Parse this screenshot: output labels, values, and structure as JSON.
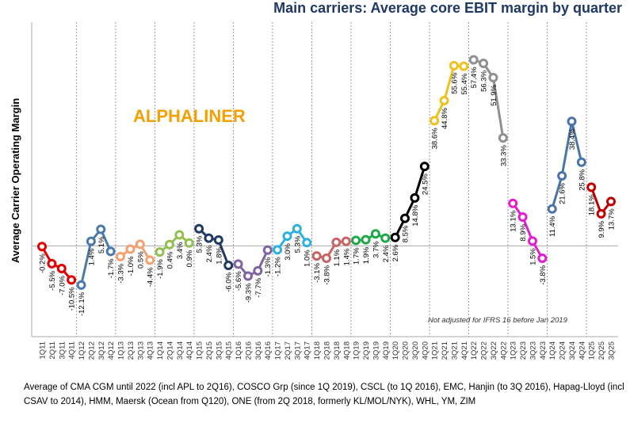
{
  "chart_data": {
    "type": "line",
    "title": "Main carriers: Average core EBIT margin by quarter",
    "y_label": "Average Carrier Operating Margin",
    "watermark": "ALPHALINER",
    "annotation": "Not adjusted for IFRS 16 before Jan 2019",
    "footnote": "Average of CMA CGM until 2022 (incl APL to 2Q16), COSCO Grp (since 1Q 2019), CSCL (to 1Q 2016), EMC, Hanjin (to 3Q 2016), Hapag-Lloyd (incl CSAV to 2014), HMM, Maersk (Ocean from Q120), ONE (from 2Q 2018, formerly KL/MOL/NYK), WHL, YM, ZIM",
    "categories": [
      "1Q11",
      "2Q11",
      "3Q11",
      "4Q11",
      "1Q12",
      "2Q12",
      "3Q12",
      "4Q12",
      "1Q13",
      "2Q13",
      "3Q13",
      "4Q13",
      "1Q14",
      "2Q14",
      "3Q14",
      "4Q14",
      "1Q15",
      "2Q15",
      "3Q15",
      "4Q15",
      "1Q16",
      "2Q16",
      "3Q16",
      "4Q16",
      "1Q17",
      "2Q17",
      "3Q17",
      "4Q17",
      "1Q18",
      "2Q18",
      "3Q18",
      "4Q18",
      "1Q19",
      "2Q19",
      "3Q19",
      "4Q19",
      "1Q20",
      "2Q20",
      "3Q20",
      "4Q20",
      "1Q21",
      "2Q21",
      "3Q21",
      "4Q21",
      "1Q22",
      "2Q22",
      "3Q22",
      "4Q22",
      "1Q23",
      "2Q23",
      "3Q23",
      "4Q23",
      "1Q24",
      "2Q24",
      "3Q24",
      "4Q24",
      "1Q25",
      "2Q25",
      "3Q25"
    ],
    "values": [
      -0.2,
      -5.5,
      -7.0,
      -10.5,
      -12.1,
      1.4,
      5.1,
      -1.7,
      -3.3,
      -1.0,
      0.5,
      -4.4,
      -1.9,
      0.4,
      3.4,
      0.9,
      5.3,
      2.4,
      1.8,
      -6.0,
      -5.6,
      -9.3,
      -7.7,
      -1.3,
      -1.2,
      3.0,
      5.3,
      1.0,
      -3.1,
      -3.8,
      1.1,
      1.4,
      1.7,
      1.9,
      3.7,
      2.4,
      2.6,
      8.5,
      14.8,
      24.5,
      38.6,
      44.8,
      55.6,
      55.4,
      57.4,
      56.3,
      51.9,
      33.3,
      13.1,
      8.9,
      1.5,
      -3.8,
      11.4,
      21.6,
      38.4,
      25.8,
      18.1,
      9.9,
      13.7
    ],
    "value_labels": [
      "-0.2%",
      "-5.5%",
      "-7.0%",
      "-10.5%",
      "-12.1%",
      "1.4%",
      "5.1%",
      "-1.7%",
      "-3.3%",
      "-1.0%",
      "0.5%",
      "-4.4%",
      "-1.9%",
      "0.4%",
      "3.4%",
      "0.9%",
      "5.3%",
      "2.4%",
      "1.8%",
      "-6.0%",
      "-5.6%",
      "-9.3%",
      "-7.7%",
      "-1.3%",
      "-1.2%",
      "3.0%",
      "5.3%",
      "1.0%",
      "-3.1%",
      "-3.8%",
      "1.1%",
      "1.4%",
      "1.7%",
      "1.9%",
      "3.7%",
      "2.4%",
      "2.6%",
      "8.5%",
      "14.8%",
      "24.5%",
      "38.6%",
      "44.8%",
      "55.6%",
      "55.4%",
      "57.4%",
      "56.3%",
      "51.9%",
      "33.3%",
      "13.1%",
      "8.9%",
      "1.5%",
      "-3.8%",
      "11.4%",
      "21.6%",
      "38.4%",
      "25.8%",
      "18.1%",
      "9.9%",
      "13.7%"
    ],
    "colors": [
      "#e00000",
      "#e00000",
      "#e00000",
      "#e00000",
      "#4a7aab",
      "#4a7aab",
      "#4a7aab",
      "#4a7aab",
      "#f4a070",
      "#f4a070",
      "#f4a070",
      "#f4a070",
      "#92c050",
      "#92c050",
      "#92c050",
      "#92c050",
      "#1f3b63",
      "#1f3b63",
      "#1f3b63",
      "#1f3b63",
      "#8064a2",
      "#8064a2",
      "#8064a2",
      "#8064a2",
      "#2eb0e0",
      "#2eb0e0",
      "#2eb0e0",
      "#2eb0e0",
      "#c86464",
      "#c86464",
      "#c86464",
      "#c86464",
      "#1ea84a",
      "#1ea84a",
      "#1ea84a",
      "#1ea84a",
      "#000000",
      "#000000",
      "#000000",
      "#000000",
      "#f0c020",
      "#f0c020",
      "#f0c020",
      "#f0c020",
      "#909090",
      "#909090",
      "#909090",
      "#909090",
      "#e020d0",
      "#e020d0",
      "#e020d0",
      "#e020d0",
      "#4a74a8",
      "#4a74a8",
      "#4a74a8",
      "#4a74a8",
      "#c00000",
      "#c00000",
      "#c00000"
    ],
    "ylim": [
      -28,
      69
    ]
  }
}
